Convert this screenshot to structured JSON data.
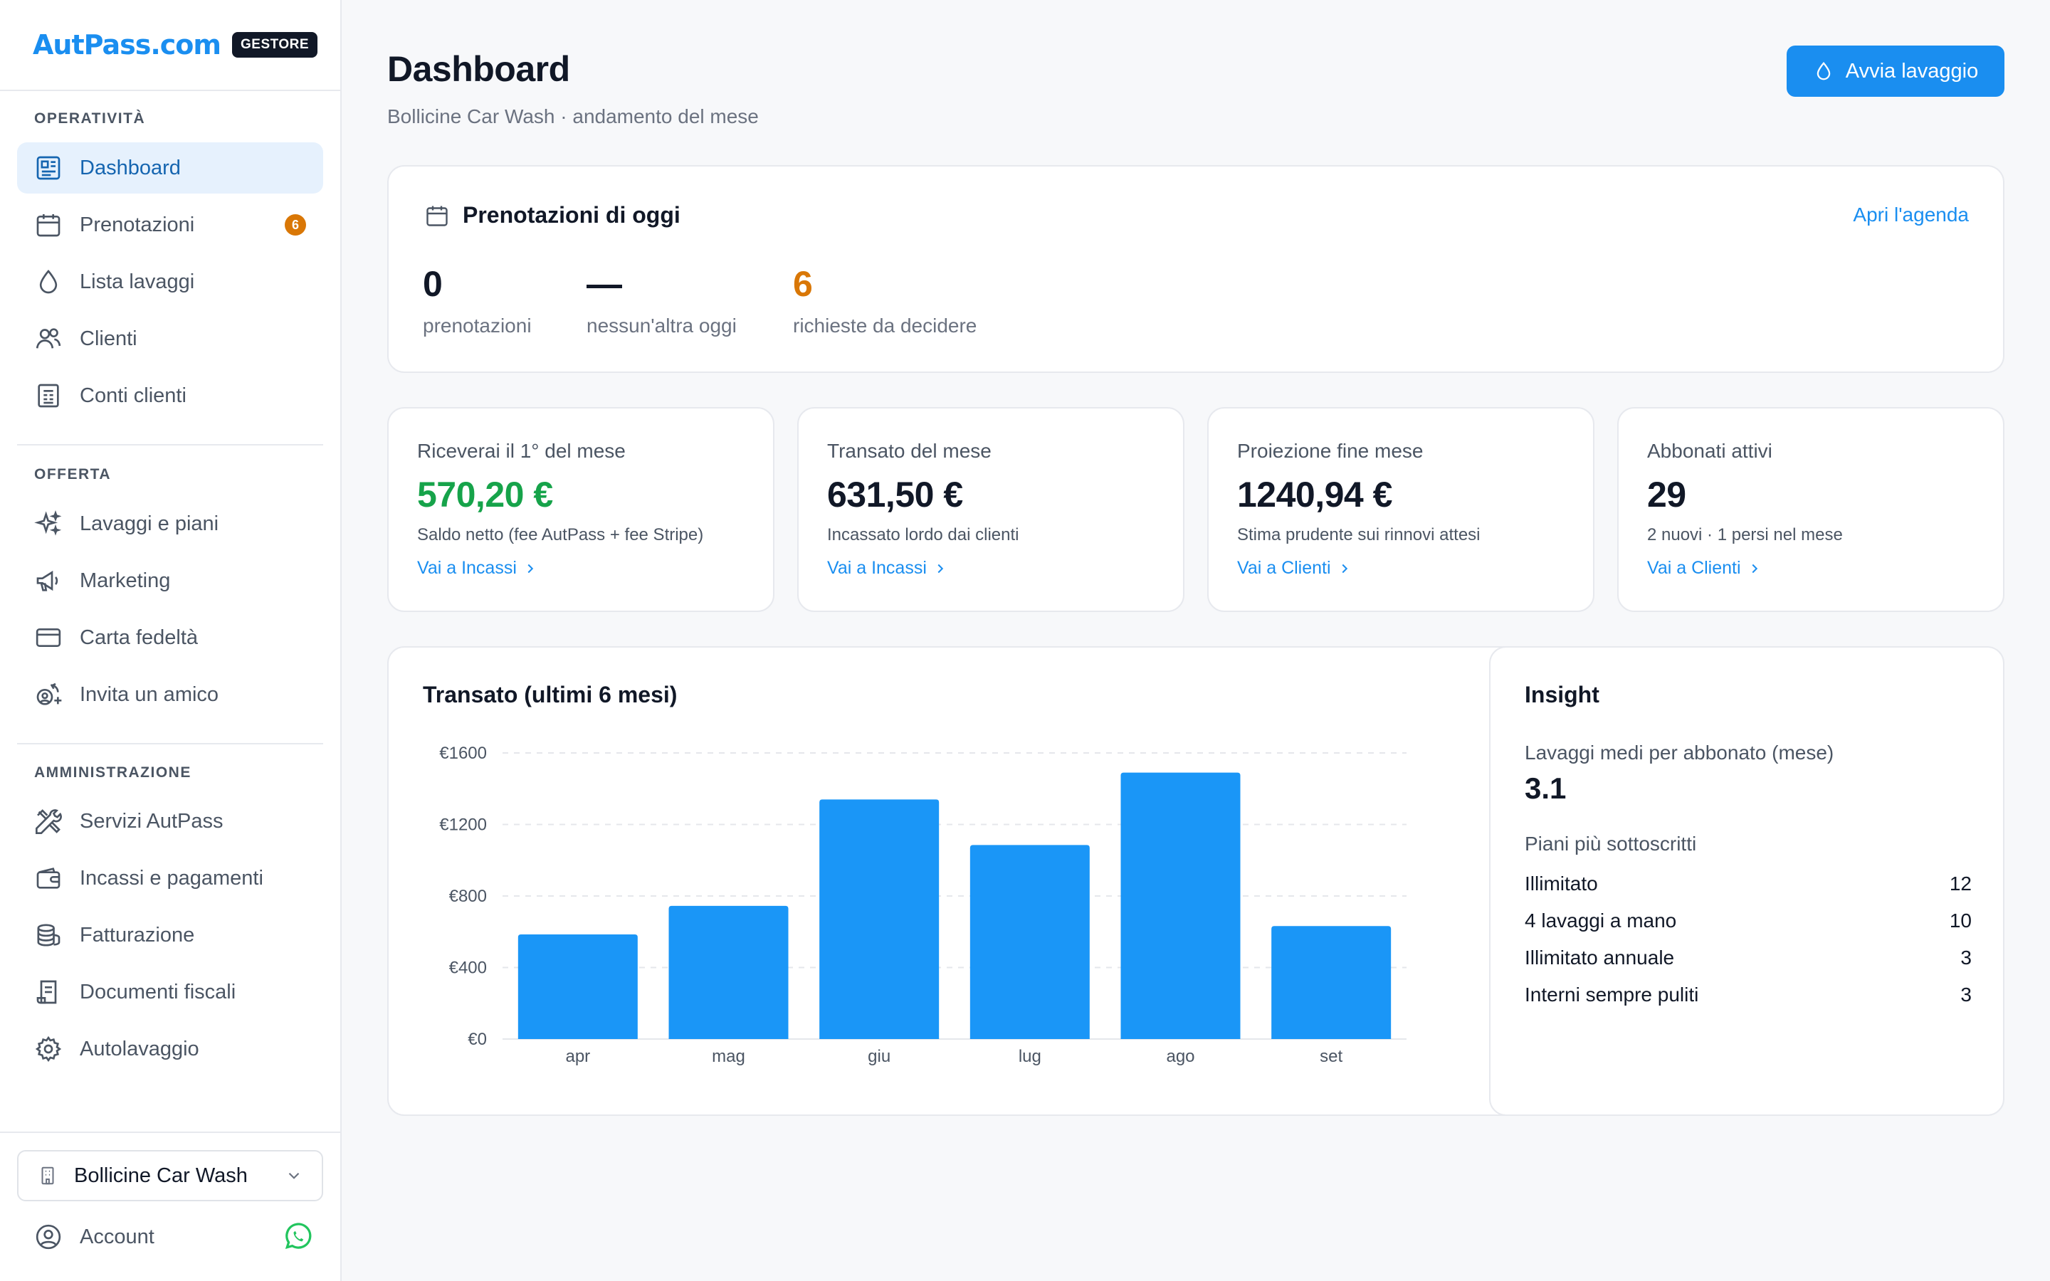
{
  "brand": {
    "logo": "AutPass.com",
    "badge": "GESTORE"
  },
  "sidebar": {
    "sections": [
      {
        "label": "OPERATIVITÀ"
      },
      {
        "label": "OFFERTA"
      },
      {
        "label": "AMMINISTRAZIONE"
      }
    ],
    "items": [
      {
        "label": "Dashboard",
        "icon": "dashboard-icon",
        "active": true
      },
      {
        "label": "Prenotazioni",
        "icon": "calendar-icon",
        "badge": "6"
      },
      {
        "label": "Lista lavaggi",
        "icon": "droplet-icon"
      },
      {
        "label": "Clienti",
        "icon": "users-icon"
      },
      {
        "label": "Conti clienti",
        "icon": "receipt-icon"
      },
      {
        "label": "Lavaggi e piani",
        "icon": "sparkles-icon"
      },
      {
        "label": "Marketing",
        "icon": "megaphone-icon"
      },
      {
        "label": "Carta fedeltà",
        "icon": "card-icon"
      },
      {
        "label": "Invita un amico",
        "icon": "referral-icon"
      },
      {
        "label": "Servizi AutPass",
        "icon": "tools-icon"
      },
      {
        "label": "Incassi e pagamenti",
        "icon": "wallet-icon"
      },
      {
        "label": "Fatturazione",
        "icon": "coins-icon"
      },
      {
        "label": "Documenti fiscali",
        "icon": "document-icon"
      },
      {
        "label": "Autolavaggio",
        "icon": "gear-icon"
      }
    ],
    "store": "Bollicine Car Wash",
    "account": "Account"
  },
  "header": {
    "title": "Dashboard",
    "subtitle": "Bollicine Car Wash · andamento del mese",
    "primary_button": "Avvia lavaggio"
  },
  "today": {
    "title": "Prenotazioni di oggi",
    "link": "Apri l'agenda",
    "stats": [
      {
        "value": "0",
        "label": "prenotazioni"
      },
      {
        "value": "—",
        "label": "nessun'altra oggi"
      },
      {
        "value": "6",
        "label": "richieste da decidere"
      }
    ]
  },
  "kpis": [
    {
      "label": "Riceverai il 1° del mese",
      "value": "570,20 €",
      "note": "Saldo netto (fee AutPass + fee Stripe)",
      "link": "Vai a Incassi"
    },
    {
      "label": "Transato del mese",
      "value": "631,50 €",
      "note": "Incassato lordo dai clienti",
      "link": "Vai a Incassi"
    },
    {
      "label": "Proiezione fine mese",
      "value": "1240,94 €",
      "note": "Stima prudente sui rinnovi attesi",
      "link": "Vai a Clienti"
    },
    {
      "label": "Abbonati attivi",
      "value": "29",
      "note": "2 nuovi · 1 persi nel mese",
      "link": "Vai a Clienti"
    }
  ],
  "chart_title": "Transato (ultimi 6 mesi)",
  "chart_data": {
    "type": "bar",
    "title": "Transato (ultimi 6 mesi)",
    "categories": [
      "apr",
      "mag",
      "giu",
      "lug",
      "ago",
      "set"
    ],
    "values": [
      585,
      745,
      1340,
      1085,
      1490,
      632
    ],
    "ylim": [
      0,
      1600
    ],
    "yticks": [
      0,
      400,
      800,
      1200,
      1600
    ],
    "ytick_labels": [
      "€0",
      "€400",
      "€800",
      "€1200",
      "€1600"
    ],
    "grid": true,
    "color": "#1a96f7"
  },
  "insight": {
    "title": "Insight",
    "avg_label": "Lavaggi medi per abbonato (mese)",
    "avg_value": "3.1",
    "plans_label": "Piani più sottoscritti",
    "plans": [
      {
        "name": "Illimitato",
        "count": "12"
      },
      {
        "name": "4 lavaggi a mano",
        "count": "10"
      },
      {
        "name": "Illimitato annuale",
        "count": "3"
      },
      {
        "name": "Interni sempre puliti",
        "count": "3"
      }
    ]
  },
  "colors": {
    "accent": "#1a8ef0",
    "success": "#16a34a",
    "warning": "#d97706"
  }
}
